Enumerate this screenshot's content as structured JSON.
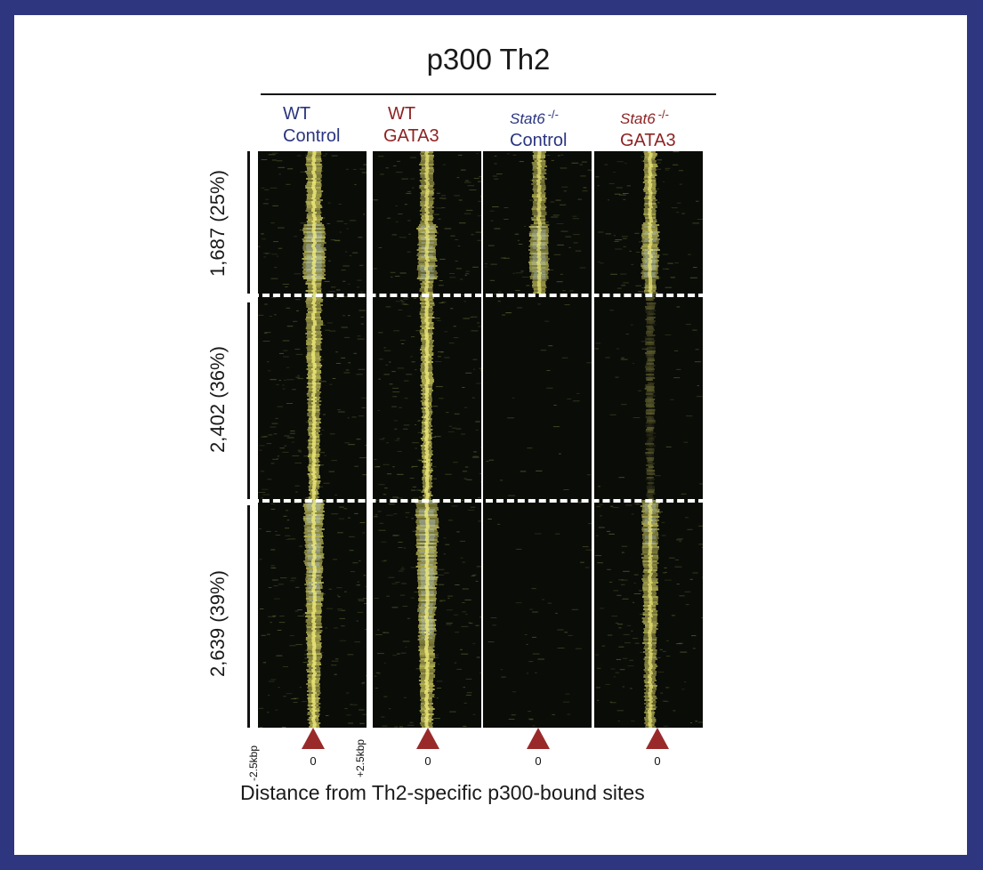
{
  "figure": {
    "title": "p300 Th2",
    "columns": [
      {
        "genotype": "WT",
        "genotype_italic": false,
        "superscript": "",
        "condition": "Control",
        "label_color": "#2a3580",
        "signal": [
          1.0,
          1.0,
          1.0
        ],
        "spread": [
          0.9,
          0.7,
          1.0
        ]
      },
      {
        "genotype": "WT",
        "genotype_italic": false,
        "superscript": "",
        "condition": "GATA3",
        "label_color": "#8e2323",
        "signal": [
          0.9,
          1.0,
          1.0
        ],
        "spread": [
          0.7,
          0.5,
          1.2
        ]
      },
      {
        "genotype": "Stat6",
        "genotype_italic": true,
        "superscript": "-/-",
        "condition": "Control",
        "label_color": "#2a3580",
        "signal": [
          0.85,
          0.0,
          0.0
        ],
        "spread": [
          0.7,
          0.0,
          0.0
        ]
      },
      {
        "genotype": "Stat6",
        "genotype_italic": true,
        "superscript": "-/-",
        "condition": "GATA3",
        "label_color": "#8e2323",
        "signal": [
          0.9,
          0.05,
          0.85
        ],
        "spread": [
          0.6,
          0.2,
          0.8
        ]
      }
    ],
    "clusters": [
      {
        "label": "1,687 (25%)",
        "count": 1687,
        "percent": 25
      },
      {
        "label": "2,402 (36%)",
        "count": 2402,
        "percent": 36
      },
      {
        "label": "2,639 (39%)",
        "count": 2639,
        "percent": 39
      }
    ],
    "x_axis": {
      "left_tick": "-2.5kbp",
      "center_tick": "0",
      "right_tick": "+2.5kbp",
      "label": "Distance from Th2-specific p300-bound sites"
    },
    "colors": {
      "frame": "#2e3680",
      "heatmap_background": "#0a0c08",
      "signal_core": "#e6e06a",
      "signal_peak": "#bcd6e6",
      "marker": "#9a2a2a"
    }
  }
}
